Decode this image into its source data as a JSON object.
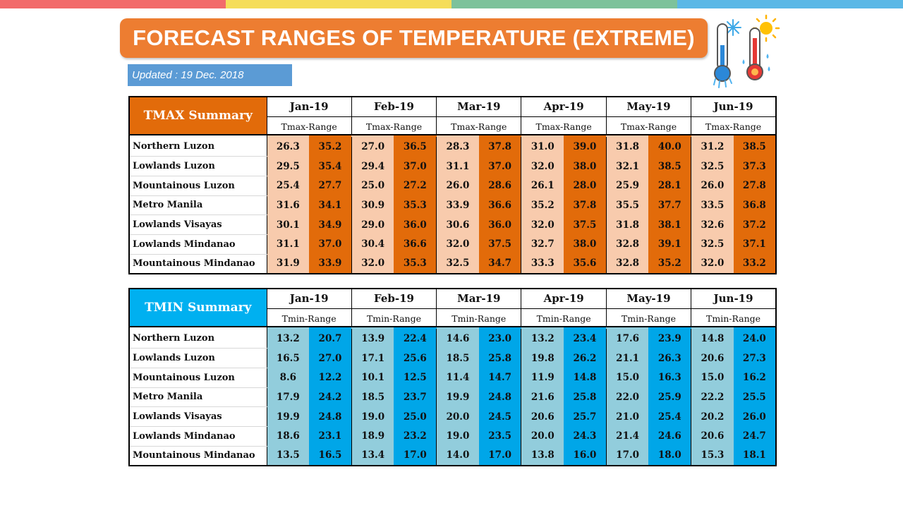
{
  "page": {
    "title": "FORECAST RANGES OF TEMPERATURE (EXTREME)",
    "updated": "Updated : 19 Dec. 2018",
    "top_bar_colors": [
      "#F26B6B",
      "#F5DD5A",
      "#7DC29B",
      "#5BB8E6"
    ],
    "icon": "thermometers-snow-sun-icon"
  },
  "months": [
    "Jan-19",
    "Feb-19",
    "Mar-19",
    "Apr-19",
    "May-19",
    "Jun-19"
  ],
  "regions": [
    "Northern Luzon",
    "Lowlands Luzon",
    "Mountainous Luzon",
    "Metro Manila",
    "Lowlands Visayas",
    "Lowlands Mindanao",
    "Mountainous Mindanao"
  ],
  "tmax": {
    "label": "TMAX Summary",
    "range_label": "Tmax-Range",
    "colors": {
      "header": "#E26B0A",
      "low": "#F8CBAD",
      "high": "#E26B0A"
    },
    "rows": [
      [
        [
          "26.3",
          "35.2"
        ],
        [
          "27.0",
          "36.5"
        ],
        [
          "28.3",
          "37.8"
        ],
        [
          "31.0",
          "39.0"
        ],
        [
          "31.8",
          "40.0"
        ],
        [
          "31.2",
          "38.5"
        ]
      ],
      [
        [
          "29.5",
          "35.4"
        ],
        [
          "29.4",
          "37.0"
        ],
        [
          "31.1",
          "37.0"
        ],
        [
          "32.0",
          "38.0"
        ],
        [
          "32.1",
          "38.5"
        ],
        [
          "32.5",
          "37.3"
        ]
      ],
      [
        [
          "25.4",
          "27.7"
        ],
        [
          "25.0",
          "27.2"
        ],
        [
          "26.0",
          "28.6"
        ],
        [
          "26.1",
          "28.0"
        ],
        [
          "25.9",
          "28.1"
        ],
        [
          "26.0",
          "27.8"
        ]
      ],
      [
        [
          "31.6",
          "34.1"
        ],
        [
          "30.9",
          "35.3"
        ],
        [
          "33.9",
          "36.6"
        ],
        [
          "35.2",
          "37.8"
        ],
        [
          "35.5",
          "37.7"
        ],
        [
          "33.5",
          "36.8"
        ]
      ],
      [
        [
          "30.1",
          "34.9"
        ],
        [
          "29.0",
          "36.0"
        ],
        [
          "30.6",
          "36.0"
        ],
        [
          "32.0",
          "37.5"
        ],
        [
          "31.8",
          "38.1"
        ],
        [
          "32.6",
          "37.2"
        ]
      ],
      [
        [
          "31.1",
          "37.0"
        ],
        [
          "30.4",
          "36.6"
        ],
        [
          "32.0",
          "37.5"
        ],
        [
          "32.7",
          "38.0"
        ],
        [
          "32.8",
          "39.1"
        ],
        [
          "32.5",
          "37.1"
        ]
      ],
      [
        [
          "31.9",
          "33.9"
        ],
        [
          "32.0",
          "35.3"
        ],
        [
          "32.5",
          "34.7"
        ],
        [
          "33.3",
          "35.6"
        ],
        [
          "32.8",
          "35.2"
        ],
        [
          "32.0",
          "33.2"
        ]
      ]
    ]
  },
  "tmin": {
    "label": "TMIN Summary",
    "range_label": "Tmin-Range",
    "colors": {
      "header": "#00B0F0",
      "low": "#92CDDC",
      "high": "#00A6E8"
    },
    "rows": [
      [
        [
          "13.2",
          "20.7"
        ],
        [
          "13.9",
          "22.4"
        ],
        [
          "14.6",
          "23.0"
        ],
        [
          "13.2",
          "23.4"
        ],
        [
          "17.6",
          "23.9"
        ],
        [
          "14.8",
          "24.0"
        ]
      ],
      [
        [
          "16.5",
          "27.0"
        ],
        [
          "17.1",
          "25.6"
        ],
        [
          "18.5",
          "25.8"
        ],
        [
          "19.8",
          "26.2"
        ],
        [
          "21.1",
          "26.3"
        ],
        [
          "20.6",
          "27.3"
        ]
      ],
      [
        [
          "8.6",
          "12.2"
        ],
        [
          "10.1",
          "12.5"
        ],
        [
          "11.4",
          "14.7"
        ],
        [
          "11.9",
          "14.8"
        ],
        [
          "15.0",
          "16.3"
        ],
        [
          "15.0",
          "16.2"
        ]
      ],
      [
        [
          "17.9",
          "24.2"
        ],
        [
          "18.5",
          "23.7"
        ],
        [
          "19.9",
          "24.8"
        ],
        [
          "21.6",
          "25.8"
        ],
        [
          "22.0",
          "25.9"
        ],
        [
          "22.2",
          "25.5"
        ]
      ],
      [
        [
          "19.9",
          "24.8"
        ],
        [
          "19.0",
          "25.0"
        ],
        [
          "20.0",
          "24.5"
        ],
        [
          "20.6",
          "25.7"
        ],
        [
          "21.0",
          "25.4"
        ],
        [
          "20.2",
          "26.0"
        ]
      ],
      [
        [
          "18.6",
          "23.1"
        ],
        [
          "18.9",
          "23.2"
        ],
        [
          "19.0",
          "23.5"
        ],
        [
          "20.0",
          "24.3"
        ],
        [
          "21.4",
          "24.6"
        ],
        [
          "20.6",
          "24.7"
        ]
      ],
      [
        [
          "13.5",
          "16.5"
        ],
        [
          "13.4",
          "17.0"
        ],
        [
          "14.0",
          "17.0"
        ],
        [
          "13.8",
          "16.0"
        ],
        [
          "17.0",
          "18.0"
        ],
        [
          "15.3",
          "18.1"
        ]
      ]
    ]
  }
}
